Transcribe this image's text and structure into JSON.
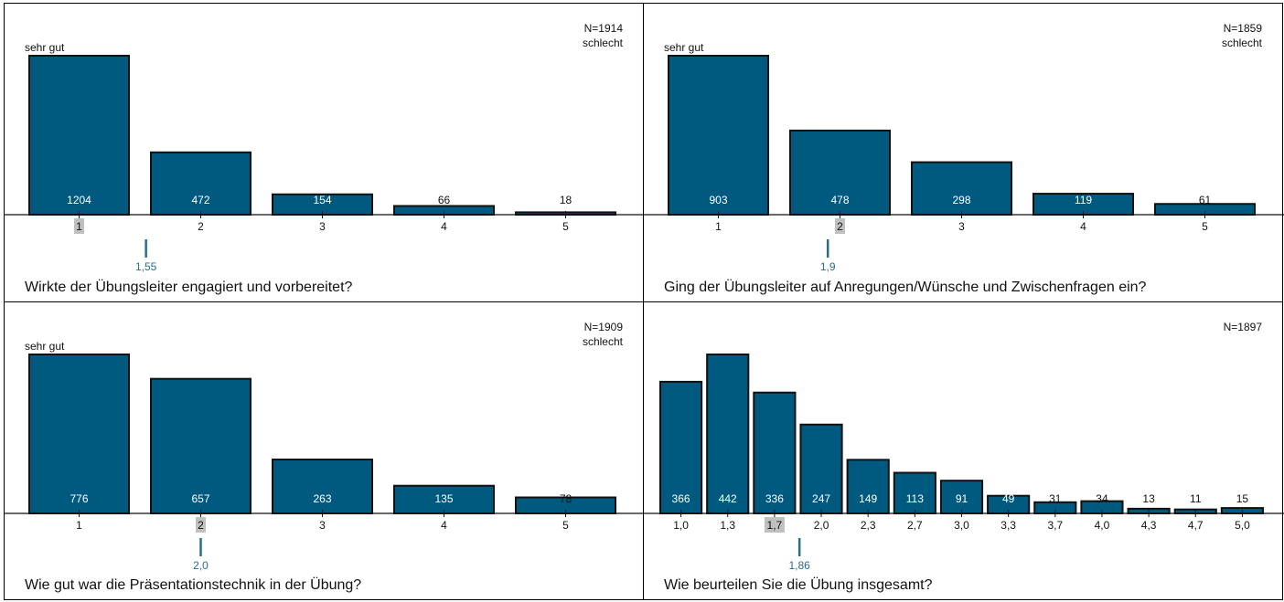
{
  "chart_data": [
    {
      "type": "bar",
      "n_label": "N=1914",
      "good_label": "sehr gut",
      "bad_label": "schlecht",
      "categories": [
        "1",
        "2",
        "3",
        "4",
        "5"
      ],
      "values": [
        1204,
        472,
        154,
        66,
        18
      ],
      "median_category": "1",
      "mean_label": "1,55",
      "mean_value": 1.55,
      "question": "Wirkte der Übungsleiter engagiert und vorbereitet?"
    },
    {
      "type": "bar",
      "n_label": "N=1859",
      "good_label": "sehr gut",
      "bad_label": "schlecht",
      "categories": [
        "1",
        "2",
        "3",
        "4",
        "5"
      ],
      "values": [
        903,
        478,
        298,
        119,
        61
      ],
      "median_category": "2",
      "mean_label": "1,9",
      "mean_value": 1.9,
      "question": "Ging der Übungsleiter auf Anregungen/Wünsche und Zwischenfragen ein?"
    },
    {
      "type": "bar",
      "n_label": "N=1909",
      "good_label": "sehr gut",
      "bad_label": "schlecht",
      "categories": [
        "1",
        "2",
        "3",
        "4",
        "5"
      ],
      "values": [
        776,
        657,
        263,
        135,
        78
      ],
      "median_category": "2",
      "mean_label": "2,0",
      "mean_value": 2.0,
      "question": "Wie gut war die Präsentationstechnik in der Übung?"
    },
    {
      "type": "bar",
      "n_label": "N=1897",
      "good_label": "",
      "bad_label": "",
      "categories": [
        "1,0",
        "1,3",
        "1,7",
        "2,0",
        "2,3",
        "2,7",
        "3,0",
        "3,3",
        "3,7",
        "4,0",
        "4,3",
        "4,7",
        "5,0"
      ],
      "values": [
        366,
        442,
        336,
        247,
        149,
        113,
        91,
        49,
        31,
        34,
        13,
        11,
        15
      ],
      "median_category": "1,7",
      "mean_label": "1,86",
      "mean_value": 1.86,
      "question": "Wie beurteilen Sie die Übung insgesamt?"
    }
  ],
  "colors": {
    "bar_fill": "#005a80",
    "bar_stroke": "#111111",
    "mean_marker": "#2b6c8a",
    "median_highlight": "#c0c0c0"
  }
}
